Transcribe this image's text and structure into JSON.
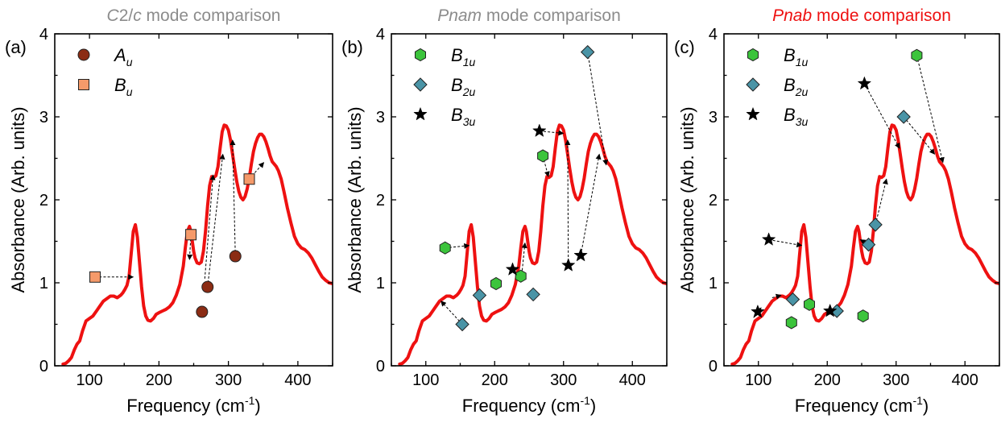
{
  "chart_data": {
    "type": "scatter",
    "spectrum_color": "#ee1111",
    "xlim": [
      50,
      450
    ],
    "ylim": [
      0,
      4
    ],
    "xticks": [
      "100",
      "200",
      "300",
      "400"
    ],
    "yticks": [
      "0",
      "1",
      "2",
      "3",
      "4"
    ],
    "spectrum": {
      "x": [
        62,
        66,
        70,
        74,
        78,
        82,
        86,
        90,
        95,
        100,
        105,
        110,
        115,
        120,
        125,
        130,
        135,
        140,
        145,
        148,
        151,
        154,
        157,
        160,
        163,
        166,
        169,
        172,
        175,
        178,
        181,
        184,
        188,
        192,
        196,
        200,
        205,
        210,
        215,
        220,
        225,
        230,
        235,
        238,
        241,
        244,
        246,
        248,
        250,
        252,
        255,
        258,
        261,
        264,
        267,
        270,
        273,
        276,
        279,
        282,
        285,
        288,
        291,
        294,
        297,
        300,
        303,
        306,
        309,
        312,
        315,
        318,
        321,
        324,
        327,
        330,
        333,
        336,
        339,
        342,
        345,
        348,
        351,
        354,
        357,
        360,
        363,
        366,
        369,
        372,
        376,
        380,
        385,
        390,
        395,
        400,
        405,
        410,
        415,
        420,
        425,
        430,
        435,
        440,
        445,
        450
      ],
      "y": [
        0.02,
        0.03,
        0.06,
        0.1,
        0.19,
        0.26,
        0.3,
        0.42,
        0.54,
        0.57,
        0.6,
        0.66,
        0.72,
        0.78,
        0.81,
        0.84,
        0.84,
        0.82,
        0.85,
        0.88,
        0.92,
        0.97,
        1.08,
        1.35,
        1.62,
        1.7,
        1.55,
        1.25,
        0.95,
        0.72,
        0.6,
        0.55,
        0.54,
        0.57,
        0.62,
        0.64,
        0.66,
        0.68,
        0.71,
        0.76,
        0.85,
        0.98,
        1.2,
        1.42,
        1.62,
        1.68,
        1.62,
        1.5,
        1.38,
        1.3,
        1.24,
        1.23,
        1.25,
        1.38,
        1.62,
        1.93,
        2.17,
        2.28,
        2.27,
        2.29,
        2.4,
        2.62,
        2.82,
        2.9,
        2.89,
        2.84,
        2.72,
        2.55,
        2.38,
        2.22,
        2.1,
        2.03,
        2.0,
        2.04,
        2.13,
        2.26,
        2.43,
        2.58,
        2.68,
        2.75,
        2.79,
        2.79,
        2.76,
        2.7,
        2.62,
        2.53,
        2.46,
        2.43,
        2.4,
        2.35,
        2.25,
        2.1,
        1.9,
        1.72,
        1.56,
        1.47,
        1.42,
        1.4,
        1.36,
        1.3,
        1.22,
        1.14,
        1.07,
        1.03,
        1.0,
        0.99
      ]
    },
    "panels": [
      {
        "label": "(a)",
        "title_parts": [
          {
            "text": "C",
            "italic": true
          },
          {
            "text": "2/",
            "italic": false
          },
          {
            "text": "c",
            "italic": true
          },
          {
            "text": " mode comparison",
            "italic": false
          }
        ],
        "title_color": "#8c8c8c",
        "xlabel": "Frequency (cm",
        "xlabel_sup": "-1",
        "xlabel_end": ")",
        "ylabel": "Absorbance (Arb. units)",
        "legend": [
          {
            "main": "A",
            "sub": "u",
            "marker": "circle",
            "color": "#8b2c14"
          },
          {
            "main": "B",
            "sub": "u",
            "marker": "square",
            "color": "#f59a6a"
          }
        ],
        "series": [
          {
            "name": "Au",
            "marker": "circle",
            "color": "#8b2c14",
            "points": [
              {
                "x": 262,
                "y": 0.65,
                "tx": null,
                "ty": null
              },
              {
                "x": 270,
                "y": 0.95,
                "tx": 292,
                "ty": 2.55
              },
              {
                "x": 310,
                "y": 1.32,
                "tx": 306,
                "ty": 2.72
              }
            ]
          },
          {
            "name": "Bu",
            "marker": "square",
            "color": "#f59a6a",
            "points": [
              {
                "x": 108,
                "y": 1.07,
                "tx": 163,
                "ty": 1.07
              },
              {
                "x": 246,
                "y": 1.58,
                "tx": 244,
                "ty": 1.28
              },
              {
                "x": 330,
                "y": 2.25,
                "tx": 351,
                "ty": 2.45
              }
            ]
          }
        ],
        "extra_arrows": [
          {
            "x1": 266,
            "y1": 1.05,
            "x2": 278,
            "y2": 2.3
          }
        ]
      },
      {
        "label": "(b)",
        "title_parts": [
          {
            "text": "Pnam",
            "italic": true
          },
          {
            "text": " mode comparison",
            "italic": false
          }
        ],
        "title_color": "#8c8c8c",
        "xlabel": "Frequency (cm",
        "xlabel_sup": "-1",
        "xlabel_end": ")",
        "ylabel": "Absorbance (Arb. units)",
        "legend": [
          {
            "main": "B",
            "sub": "1u",
            "marker": "hexagon",
            "color": "#3cc43c"
          },
          {
            "main": "B",
            "sub": "2u",
            "marker": "diamond",
            "color": "#4a94a6"
          },
          {
            "main": "B",
            "sub": "3u",
            "marker": "star",
            "color": "#000000"
          }
        ],
        "series": [
          {
            "name": "B1u",
            "marker": "hexagon",
            "color": "#3cc43c",
            "points": [
              {
                "x": 128,
                "y": 1.42,
                "tx": 163,
                "ty": 1.45
              },
              {
                "x": 202,
                "y": 0.99,
                "tx": null,
                "ty": null
              },
              {
                "x": 238,
                "y": 1.08,
                "tx": null,
                "ty": null
              },
              {
                "x": 270,
                "y": 2.53,
                "tx": 278,
                "ty": 2.28
              }
            ]
          },
          {
            "name": "B2u",
            "marker": "diamond",
            "color": "#4a94a6",
            "points": [
              {
                "x": 153,
                "y": 0.5,
                "tx": 122,
                "ty": 0.78
              },
              {
                "x": 178,
                "y": 0.85,
                "tx": null,
                "ty": null
              },
              {
                "x": 256,
                "y": 0.86,
                "tx": null,
                "ty": null
              },
              {
                "x": 335,
                "y": 3.78,
                "tx": 362,
                "ty": 2.42
              }
            ]
          },
          {
            "name": "B3u",
            "marker": "star",
            "color": "#000000",
            "points": [
              {
                "x": 226,
                "y": 1.16,
                "tx": null,
                "ty": null
              },
              {
                "x": 265,
                "y": 2.83,
                "tx": 300,
                "ty": 2.8
              },
              {
                "x": 307,
                "y": 1.21,
                "tx": 306,
                "ty": 2.72
              },
              {
                "x": 325,
                "y": 1.33,
                "tx": 352,
                "ty": 2.55
              }
            ]
          }
        ],
        "extra_arrows": [
          {
            "x1": 240,
            "y1": 1.15,
            "x2": 244,
            "y2": 1.48
          }
        ]
      },
      {
        "label": "(c)",
        "title_parts": [
          {
            "text": "Pnab",
            "italic": true
          },
          {
            "text": " mode comparison",
            "italic": false
          }
        ],
        "title_color": "#ee1111",
        "xlabel": "Frequency (cm",
        "xlabel_sup": "-1",
        "xlabel_end": ")",
        "ylabel": "Absorbance (Arb. units)",
        "legend": [
          {
            "main": "B",
            "sub": "1u",
            "marker": "hexagon",
            "color": "#3cc43c"
          },
          {
            "main": "B",
            "sub": "2u",
            "marker": "diamond",
            "color": "#4a94a6"
          },
          {
            "main": "B",
            "sub": "3u",
            "marker": "star",
            "color": "#000000"
          }
        ],
        "series": [
          {
            "name": "B1u",
            "marker": "hexagon",
            "color": "#3cc43c",
            "points": [
              {
                "x": 148,
                "y": 0.52,
                "tx": null,
                "ty": null
              },
              {
                "x": 174,
                "y": 0.74,
                "tx": null,
                "ty": null
              },
              {
                "x": 252,
                "y": 0.6,
                "tx": null,
                "ty": null
              },
              {
                "x": 330,
                "y": 3.74,
                "tx": 368,
                "ty": 2.45
              }
            ]
          },
          {
            "name": "B2u",
            "marker": "diamond",
            "color": "#4a94a6",
            "points": [
              {
                "x": 150,
                "y": 0.8,
                "tx": null,
                "ty": null
              },
              {
                "x": 214,
                "y": 0.66,
                "tx": null,
                "ty": null
              },
              {
                "x": 260,
                "y": 1.46,
                "tx": 248,
                "ty": 1.52
              },
              {
                "x": 270,
                "y": 1.7,
                "tx": 286,
                "ty": 2.25
              },
              {
                "x": 311,
                "y": 3.0,
                "tx": 356,
                "ty": 2.55
              }
            ]
          },
          {
            "name": "B3u",
            "marker": "star",
            "color": "#000000",
            "points": [
              {
                "x": 99,
                "y": 0.65,
                "tx": null,
                "ty": null
              },
              {
                "x": 115,
                "y": 1.52,
                "tx": 163,
                "ty": 1.45
              },
              {
                "x": 204,
                "y": 0.66,
                "tx": null,
                "ty": null
              },
              {
                "x": 254,
                "y": 3.4,
                "tx": 305,
                "ty": 2.62
              }
            ]
          }
        ],
        "extra_arrows": [
          {
            "x1": 93,
            "y1": 0.58,
            "x2": 104,
            "y2": 0.7
          },
          {
            "x1": 120,
            "y1": 0.82,
            "x2": 133,
            "y2": 0.85
          },
          {
            "x1": 198,
            "y1": 0.64,
            "x2": 210,
            "y2": 0.66
          }
        ]
      }
    ]
  }
}
